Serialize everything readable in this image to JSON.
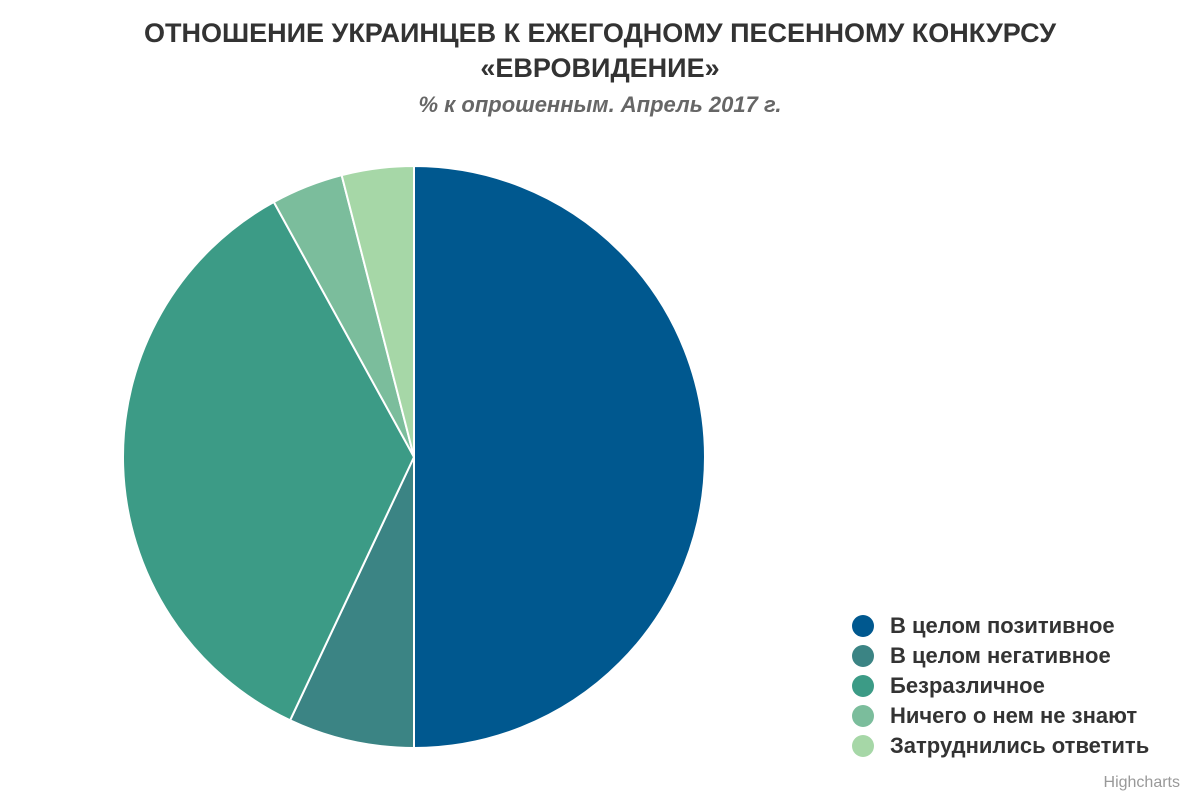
{
  "title_line1": "ОТНОШЕНИЕ УКРАИНЦЕВ К ЕЖЕГОДНОМУ ПЕСЕННОМУ КОНКУРСУ",
  "title_line2": "«ЕВРОВИДЕНИЕ»",
  "subtitle": "% к опрошенным. Апрель 2017 г.",
  "credits": "Highcharts",
  "chart_data": {
    "type": "pie",
    "title": "ОТНОШЕНИЕ УКРАИНЦЕВ К ЕЖЕГОДНОМУ ПЕСЕННОМУ КОНКУРСУ «ЕВРОВИДЕНИЕ»",
    "subtitle": "% к опрошенным. Апрель 2017 г.",
    "legend_position": "bottom-right",
    "slices": [
      {
        "name": "В целом позитивное",
        "value": 50,
        "color": "#00588f"
      },
      {
        "name": "В целом негативное",
        "value": 7,
        "color": "#3b8484"
      },
      {
        "name": "Безразличное",
        "value": 35,
        "color": "#3c9b86"
      },
      {
        "name": "Ничего о нем не знают",
        "value": 4,
        "color": "#7bbd9c"
      },
      {
        "name": "Затруднились ответить",
        "value": 4,
        "color": "#a6d7a7"
      }
    ]
  }
}
